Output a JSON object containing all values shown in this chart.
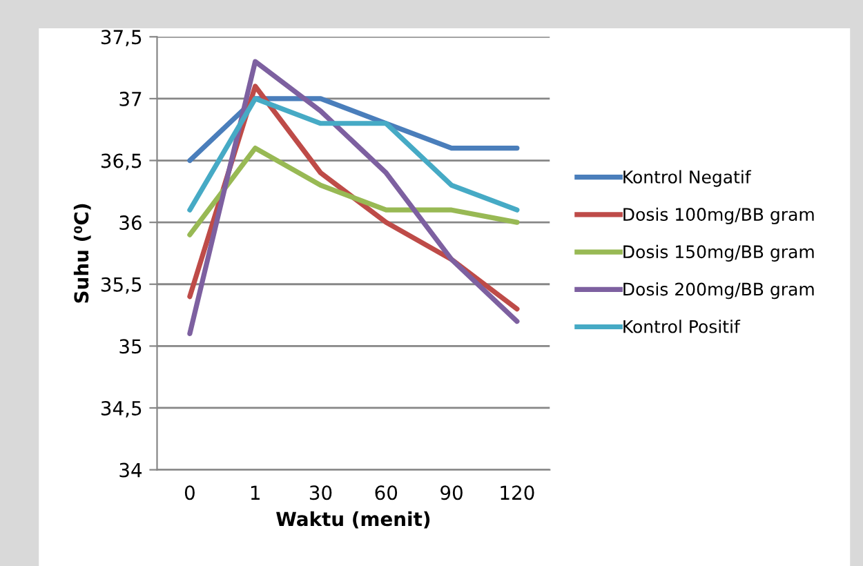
{
  "chart_data": {
    "type": "line",
    "xlabel": "Waktu (menit)",
    "ylabel": "Suhu (⁰C)",
    "categories": [
      "0",
      "1",
      "30",
      "60",
      "90",
      "120"
    ],
    "series": [
      {
        "name": "Kontrol Negatif",
        "color": "#4a7ebb",
        "values": [
          36.5,
          37.0,
          37.0,
          36.8,
          36.6,
          36.6
        ]
      },
      {
        "name": "Dosis 100mg/BB gram",
        "color": "#be4b48",
        "values": [
          35.4,
          37.1,
          36.4,
          36.0,
          35.7,
          35.3
        ]
      },
      {
        "name": "Dosis 150mg/BB gram",
        "color": "#98b954",
        "values": [
          35.9,
          36.6,
          36.3,
          36.1,
          36.1,
          36.0
        ]
      },
      {
        "name": "Dosis 200mg/BB gram",
        "color": "#7d60a0",
        "values": [
          35.1,
          37.3,
          36.9,
          36.4,
          35.7,
          35.2
        ]
      },
      {
        "name": "Kontrol Positif",
        "color": "#46aac5",
        "values": [
          36.1,
          37.0,
          36.8,
          36.8,
          36.3,
          36.1
        ]
      }
    ],
    "ylim": [
      34,
      37.5
    ],
    "yticks": [
      34,
      {
        "value": 34.5,
        "label": "34,5"
      },
      35,
      {
        "value": 35.5,
        "label": "35,5"
      },
      36,
      {
        "value": 36.5,
        "label": "36,5"
      },
      37,
      {
        "value": 37.5,
        "label": "37,5"
      }
    ],
    "grid": "y",
    "legend": "right",
    "marker": "none",
    "line_style": "solid"
  }
}
